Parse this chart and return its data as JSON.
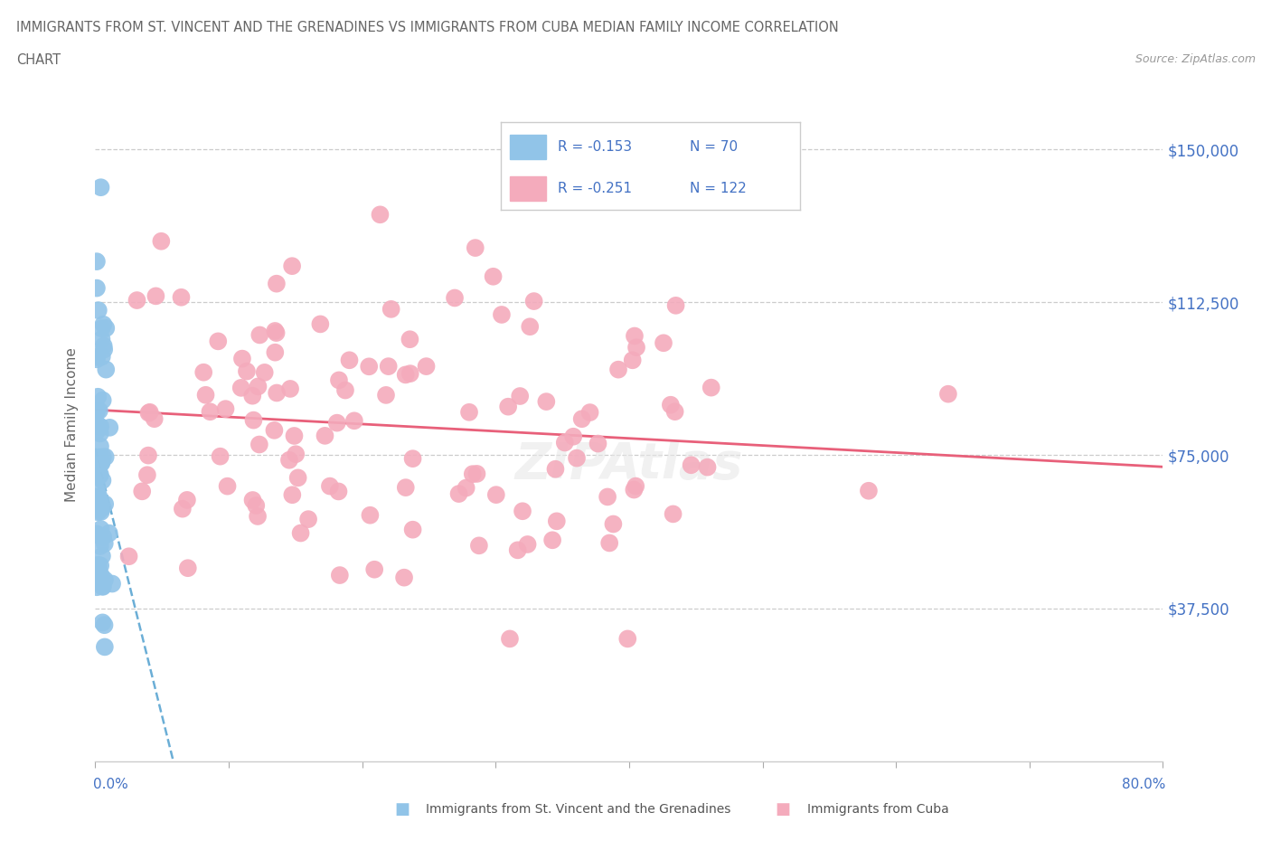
{
  "title_line1": "IMMIGRANTS FROM ST. VINCENT AND THE GRENADINES VS IMMIGRANTS FROM CUBA MEDIAN FAMILY INCOME CORRELATION",
  "title_line2": "CHART",
  "source": "Source: ZipAtlas.com",
  "ylabel": "Median Family Income",
  "ytick_labels": [
    "",
    "$37,500",
    "$75,000",
    "$112,500",
    "$150,000"
  ],
  "yticks": [
    0,
    37500,
    75000,
    112500,
    150000
  ],
  "xlim": [
    0,
    0.8
  ],
  "ylim": [
    0,
    165000
  ],
  "legend_r1": "R = -0.153",
  "legend_n1": "N = 70",
  "legend_r2": "R = -0.251",
  "legend_n2": "N = 122",
  "color_svg": "#91C4E8",
  "color_cuba": "#F4ABBC",
  "color_trendline_svg": "#6baed6",
  "color_trendline_cuba": "#e8607a",
  "color_axis_labels": "#4472C4",
  "color_title": "#666666",
  "color_legend_text": "#4472C4",
  "svg_seed": 12,
  "cuba_seed": 7
}
